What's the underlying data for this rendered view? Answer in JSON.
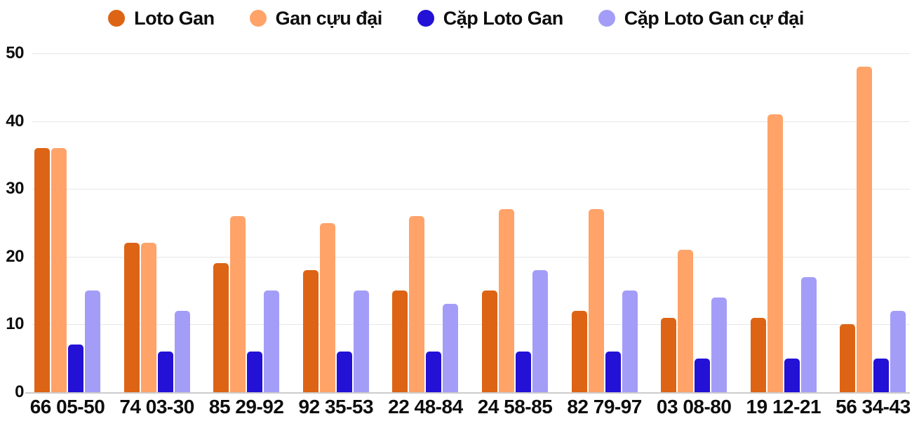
{
  "chart_data": {
    "type": "bar",
    "title": "",
    "xlabel": "",
    "ylabel": "",
    "categories": [
      "66 05-50",
      "74 03-30",
      "85 29-92",
      "92 35-53",
      "22 48-84",
      "24 58-85",
      "82 79-97",
      "03 08-80",
      "19 12-21",
      "56 34-43"
    ],
    "series": [
      {
        "id": "loto-gan",
        "name": "Loto Gan",
        "color": "#dd6414",
        "values": [
          36,
          22,
          19,
          18,
          15,
          15,
          12,
          11,
          11,
          10
        ]
      },
      {
        "id": "gan-cuu-dai",
        "name": "Gan cựu đại",
        "color": "#ffa369",
        "values": [
          36,
          22,
          26,
          25,
          26,
          27,
          27,
          21,
          41,
          48
        ]
      },
      {
        "id": "cap-loto-gan",
        "name": "Cặp Loto Gan",
        "color": "#2311d6",
        "values": [
          7,
          6,
          6,
          6,
          6,
          6,
          6,
          5,
          5,
          5
        ]
      },
      {
        "id": "cap-loto-gan-cu-dai",
        "name": "Cặp Loto Gan cự đại",
        "color": "#a39df8",
        "values": [
          15,
          12,
          15,
          15,
          13,
          18,
          15,
          14,
          17,
          12
        ]
      }
    ],
    "ylim": [
      0,
      50
    ],
    "yticks": [
      0,
      10,
      20,
      30,
      40,
      50
    ],
    "grid": "horizontal",
    "legend_position": "top"
  },
  "colors": {
    "text": "#0d0d0d",
    "gridline": "#e6e6e6",
    "axis_line": "#cccccc",
    "background": "#ffffff"
  }
}
